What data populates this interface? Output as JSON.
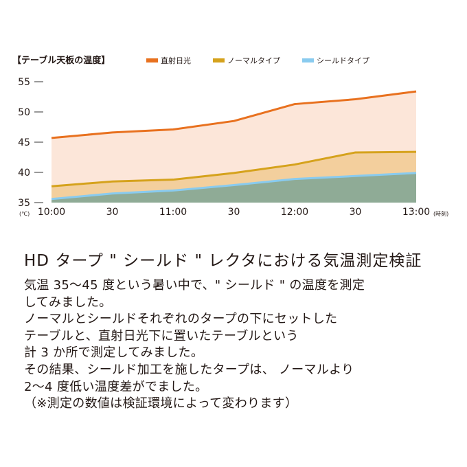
{
  "chart_data": {
    "type": "area",
    "title": "【テーブル天板の温度】",
    "categories": [
      "10:00",
      "30",
      "11:00",
      "30",
      "12:00",
      "30",
      "13:00"
    ],
    "x_unit": "(時刻)",
    "y_unit": "(℃)",
    "ylim": [
      35,
      55
    ],
    "yticks": [
      35,
      40,
      45,
      50,
      55
    ],
    "grid": false,
    "legend_position": "top",
    "series": [
      {
        "name": "直射日光",
        "color": "#e8711f",
        "fill": "#fce6d9",
        "values": [
          45.7,
          46.6,
          47.1,
          48.5,
          51.3,
          52.1,
          53.4
        ]
      },
      {
        "name": "ノーマルタイプ",
        "color": "#d5a21c",
        "fill": "#f3cf9d",
        "values": [
          37.7,
          38.5,
          38.8,
          39.9,
          41.3,
          43.3,
          43.4
        ]
      },
      {
        "name": "シールドタイプ",
        "color": "#89cbef",
        "fill": "#8fab96",
        "values": [
          35.6,
          36.5,
          37.0,
          37.9,
          38.9,
          39.4,
          39.9
        ]
      }
    ]
  },
  "article": {
    "heading": "HD タープ \" シールド \" レクタにおける気温測定検証",
    "lines": [
      "気温 35～45 度という暑い中で、\" シールド \" の温度を測定",
      "してみました。",
      "ノーマルとシールドそれぞれのタープの下にセットした",
      "テーブルと、直射日光下に置いたテーブルという",
      "計 3 か所で測定してみました。",
      "その結果、シールド加工を施したタープは、 ノーマルより",
      "2～4 度低い温度差がでました。",
      "（※測定の数値は検証環境によって変わります）"
    ]
  }
}
